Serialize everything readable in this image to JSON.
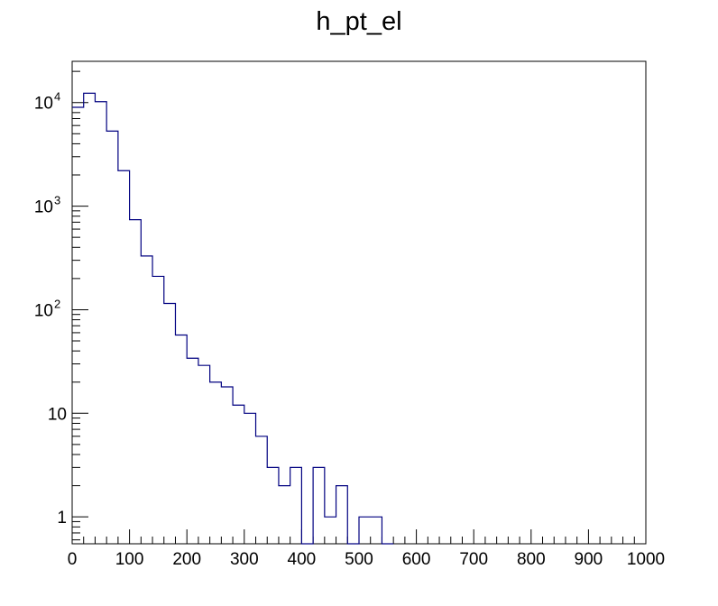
{
  "chart_data": {
    "type": "histogram",
    "title": "h_pt_el",
    "xlabel": "",
    "ylabel": "",
    "xlim": [
      0,
      1000
    ],
    "ylim": [
      0.55,
      25000
    ],
    "yscale": "log",
    "bin_width": 20,
    "line_color": "#000080",
    "grid": false,
    "x_ticks": [
      {
        "value": 0,
        "label": "0"
      },
      {
        "value": 100,
        "label": "100"
      },
      {
        "value": 200,
        "label": "200"
      },
      {
        "value": 300,
        "label": "300"
      },
      {
        "value": 400,
        "label": "400"
      },
      {
        "value": 500,
        "label": "500"
      },
      {
        "value": 600,
        "label": "600"
      },
      {
        "value": 700,
        "label": "700"
      },
      {
        "value": 800,
        "label": "800"
      },
      {
        "value": 900,
        "label": "900"
      },
      {
        "value": 1000,
        "label": "1000"
      }
    ],
    "y_ticks": [
      {
        "value": 1,
        "base": "1",
        "exp": ""
      },
      {
        "value": 10,
        "base": "10",
        "exp": ""
      },
      {
        "value": 100,
        "base": "10",
        "exp": "2"
      },
      {
        "value": 1000,
        "base": "10",
        "exp": "3"
      },
      {
        "value": 10000,
        "base": "10",
        "exp": "4"
      }
    ],
    "bins": [
      {
        "x": 0,
        "y": 9000
      },
      {
        "x": 20,
        "y": 12300
      },
      {
        "x": 40,
        "y": 10200
      },
      {
        "x": 60,
        "y": 5300
      },
      {
        "x": 80,
        "y": 2200
      },
      {
        "x": 100,
        "y": 740
      },
      {
        "x": 120,
        "y": 330
      },
      {
        "x": 140,
        "y": 210
      },
      {
        "x": 160,
        "y": 115
      },
      {
        "x": 180,
        "y": 57
      },
      {
        "x": 200,
        "y": 34
      },
      {
        "x": 220,
        "y": 29
      },
      {
        "x": 240,
        "y": 20
      },
      {
        "x": 260,
        "y": 18
      },
      {
        "x": 280,
        "y": 12
      },
      {
        "x": 300,
        "y": 10
      },
      {
        "x": 320,
        "y": 6
      },
      {
        "x": 340,
        "y": 3
      },
      {
        "x": 360,
        "y": 2
      },
      {
        "x": 380,
        "y": 3
      },
      {
        "x": 400,
        "y": 0
      },
      {
        "x": 420,
        "y": 3
      },
      {
        "x": 440,
        "y": 1
      },
      {
        "x": 460,
        "y": 2
      },
      {
        "x": 480,
        "y": 0
      },
      {
        "x": 500,
        "y": 1
      },
      {
        "x": 520,
        "y": 1
      },
      {
        "x": 540,
        "y": 0
      }
    ]
  }
}
